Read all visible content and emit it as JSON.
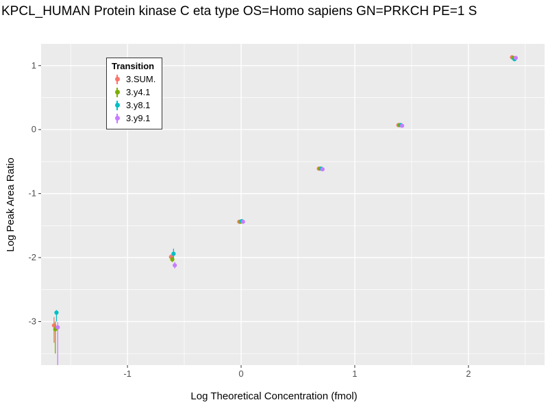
{
  "chart_data": {
    "type": "scatter",
    "title": "KPCL_HUMAN Protein kinase C eta type OS=Homo sapiens GN=PRKCH PE=1 S",
    "xlabel": "Log Theoretical Concentration (fmol)",
    "ylabel": "Log Peak Area Ratio",
    "xlim": [
      -1.76,
      2.67
    ],
    "ylim": [
      -3.68,
      1.34
    ],
    "x_ticks": [
      -1,
      0,
      1,
      2
    ],
    "x_minor_ticks": [
      -1.5,
      -0.5,
      0.5,
      1.5,
      2.5
    ],
    "y_ticks": [
      -3,
      -2,
      -1,
      0,
      1
    ],
    "y_minor_ticks": [
      -3.5,
      -2.5,
      -1.5,
      -0.5,
      0.5
    ],
    "grid": true,
    "panel_background": "#EBEBEB",
    "gridline_color": "#FFFFFF",
    "tick_color": "#333333",
    "tick_label_color": "#4D4D4D",
    "legend": {
      "title": "Transition",
      "position": "top-left-inside"
    },
    "x": [
      -1.63,
      -0.6,
      0,
      0.7,
      1.4,
      2.4
    ],
    "series": [
      {
        "name": "3.SUM.",
        "color": "#F8766D",
        "y": [
          -3.06,
          -1.99,
          -1.44,
          -0.61,
          0.07,
          1.13
        ],
        "lo": [
          -3.33,
          -2.03,
          -1.44,
          -0.61,
          0.07,
          1.13
        ],
        "hi": [
          -2.93,
          -1.95,
          -1.44,
          -0.61,
          0.07,
          1.13
        ]
      },
      {
        "name": "3.y4.1",
        "color": "#7CAE00",
        "y": [
          -3.12,
          -2.03,
          -1.44,
          -0.61,
          0.07,
          1.12
        ],
        "lo": [
          -3.5,
          -2.07,
          -1.44,
          -0.61,
          0.07,
          1.12
        ],
        "hi": [
          -3.0,
          -1.99,
          -1.44,
          -0.61,
          0.07,
          1.12
        ]
      },
      {
        "name": "3.y8.1",
        "color": "#00BFC4",
        "y": [
          -2.86,
          -1.94,
          -1.43,
          -0.61,
          0.07,
          1.1
        ],
        "lo": [
          -3.0,
          -2.02,
          -1.43,
          -0.61,
          0.07,
          1.1
        ],
        "hi": [
          -2.82,
          -1.86,
          -1.43,
          -0.61,
          0.07,
          1.1
        ]
      },
      {
        "name": "3.y9.1",
        "color": "#C77CFF",
        "y": [
          -3.09,
          -2.12,
          -1.44,
          -0.62,
          0.06,
          1.12
        ],
        "lo": [
          -3.68,
          -2.17,
          -1.44,
          -0.62,
          0.06,
          1.12
        ],
        "hi": [
          -3.01,
          -2.07,
          -1.44,
          -0.62,
          0.06,
          1.12
        ]
      }
    ]
  }
}
